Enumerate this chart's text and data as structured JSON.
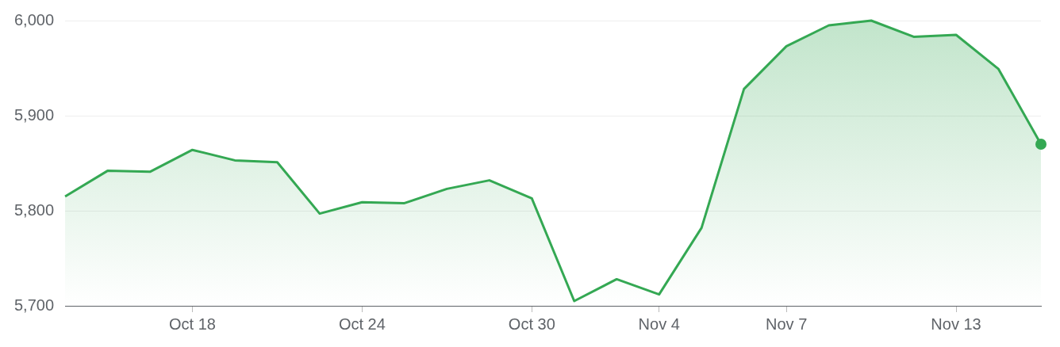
{
  "chart_data": {
    "type": "area",
    "categories": [
      null,
      null,
      null,
      "Oct 18",
      null,
      null,
      null,
      "Oct 24",
      null,
      null,
      null,
      "Oct 30",
      null,
      null,
      "Nov 4",
      null,
      null,
      "Nov 7",
      null,
      null,
      null,
      "Nov 13",
      null,
      null
    ],
    "series": [
      {
        "color": "#34a853",
        "values": [
          5815,
          5842,
          5841,
          5864,
          5853,
          5851,
          5797,
          5809,
          5808,
          5823,
          5832,
          5813,
          5705,
          5728,
          5712,
          5782,
          5928,
          5973,
          5995,
          6000,
          5983,
          5985,
          5949,
          5870
        ]
      }
    ],
    "ylim": [
      5700,
      6000
    ],
    "yticks": [
      {
        "value": 5700,
        "label": "5,700"
      },
      {
        "value": 5800,
        "label": "5,800"
      },
      {
        "value": 5900,
        "label": "5,900"
      },
      {
        "value": 6000,
        "label": "6,000"
      }
    ],
    "grid": "y",
    "legend": false
  }
}
